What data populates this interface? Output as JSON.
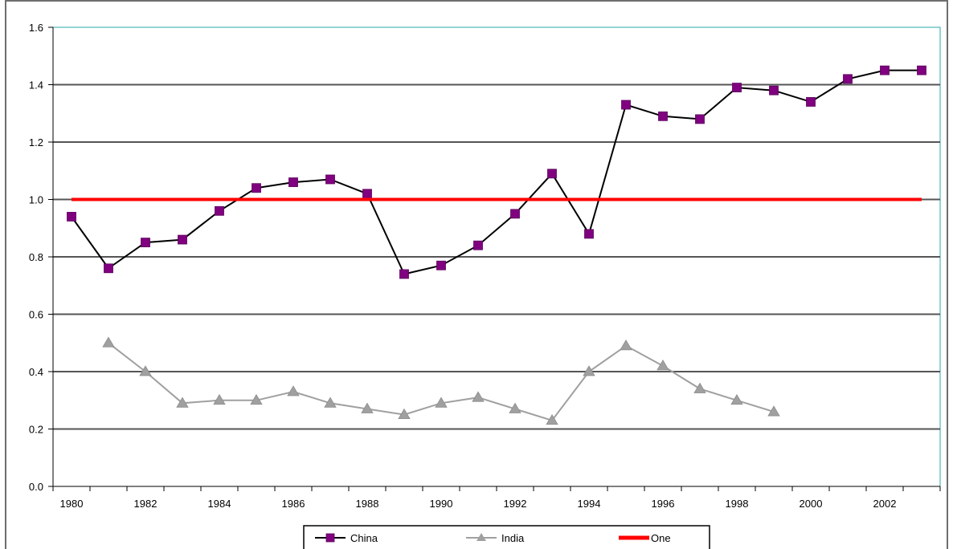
{
  "chart_data": {
    "type": "line",
    "title": "",
    "xlabel": "",
    "ylabel": "",
    "x": [
      1980,
      1981,
      1982,
      1983,
      1984,
      1985,
      1986,
      1987,
      1988,
      1989,
      1990,
      1991,
      1992,
      1993,
      1994,
      1995,
      1996,
      1997,
      1998,
      1999,
      2000,
      2001,
      2002,
      2003
    ],
    "x_tick_labels": [
      "1980",
      "1982",
      "1984",
      "1986",
      "1988",
      "1990",
      "1992",
      "1994",
      "1996",
      "1998",
      "2000",
      "2002"
    ],
    "y_tick_labels": [
      "0.0",
      "0.2",
      "0.4",
      "0.6",
      "0.8",
      "1.0",
      "1.2",
      "1.4",
      "1.6"
    ],
    "ylim": [
      0,
      1.6
    ],
    "grid": "horizontal",
    "legend_position": "bottom",
    "series": [
      {
        "name": "China",
        "color": "#800080",
        "line_color": "#000000",
        "marker": "square",
        "values": [
          0.94,
          0.76,
          0.85,
          0.86,
          0.96,
          1.04,
          1.06,
          1.07,
          1.02,
          0.74,
          0.77,
          0.84,
          0.95,
          1.09,
          0.88,
          1.33,
          1.29,
          1.28,
          1.39,
          1.38,
          1.34,
          1.42,
          1.45,
          1.45
        ]
      },
      {
        "name": "India",
        "color": "#a0a0a0",
        "line_color": "#a0a0a0",
        "marker": "triangle",
        "values": [
          null,
          0.5,
          0.4,
          0.29,
          0.3,
          0.3,
          0.33,
          0.29,
          0.27,
          0.25,
          0.29,
          0.31,
          0.27,
          0.23,
          0.4,
          0.49,
          0.42,
          0.34,
          0.3,
          0.26,
          null,
          null,
          null,
          null
        ]
      },
      {
        "name": "One",
        "color": "#ff0000",
        "line_color": "#ff0000",
        "marker": "none",
        "values": [
          1,
          1,
          1,
          1,
          1,
          1,
          1,
          1,
          1,
          1,
          1,
          1,
          1,
          1,
          1,
          1,
          1,
          1,
          1,
          1,
          1,
          1,
          1,
          1
        ]
      }
    ]
  }
}
